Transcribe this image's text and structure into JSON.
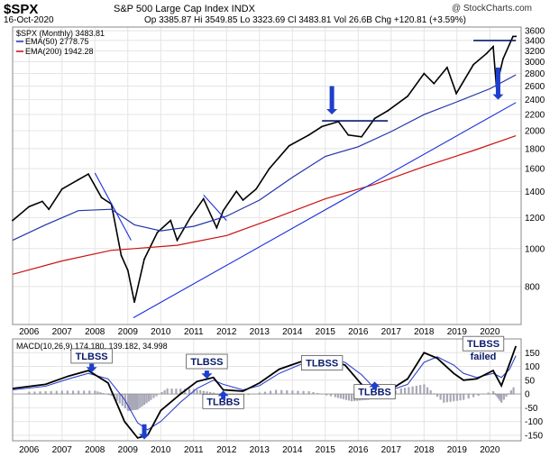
{
  "header": {
    "symbol": "$SPX",
    "name": "S&P 500 Large Cap Index INDX",
    "date": "16-Oct-2020",
    "ohlc": "Op 3385.87  Hi 3549.85  Lo 3323.69  Cl 3483.81  Vol 26.6B  Chg +120.81 (+3.59%)",
    "watermark": "@ StockCharts.com"
  },
  "colors": {
    "price": "#000000",
    "ema50": "#2233aa",
    "ema200": "#cc1111",
    "trendline": "#1a2fdd",
    "macd": "#000000",
    "signal": "#3344cc",
    "histogram": "#a8a8b8",
    "grid": "#e4e4e4",
    "annotation_box": "#ffffff",
    "annotation_text": "#0a1a6b",
    "arrow": "#1e3fcc"
  },
  "legend": {
    "price": "$SPX (Monthly) 3483.81",
    "ema50": "EMA(50) 2778.75",
    "ema200": "EMA(200) 1942.28"
  },
  "macd_legend": {
    "label": "MACD(10,26,9) 174.180, 139.182, 34.998"
  },
  "annotations": [
    {
      "text": "TLBSS",
      "panel": "macd",
      "year": 2007.9,
      "value": 125
    },
    {
      "text": "TLBSS",
      "panel": "macd",
      "year": 2011.4,
      "value": 105
    },
    {
      "text": "TLBBS",
      "panel": "macd",
      "year": 2011.9,
      "value": -40
    },
    {
      "text": "TLBSS",
      "panel": "price",
      "year": 2014.9,
      "value": 500
    },
    {
      "text": "TLBBS",
      "panel": "macd",
      "year": 2016.5,
      "value": -5
    },
    {
      "text": "TLBSS",
      "panel": "price",
      "year": 2019.8,
      "value": 560
    },
    {
      "text": "failed",
      "panel": "price",
      "year": 2019.8,
      "value": 520
    }
  ],
  "chart_data": [
    {
      "type": "line",
      "title": "$SPX S&P 500 Large Cap Index INDX",
      "scale": "log",
      "x_tick_labels": [
        "2006",
        "2007",
        "2008",
        "2009",
        "2010",
        "2011",
        "2012",
        "2013",
        "2014",
        "2015",
        "2016",
        "2017",
        "2018",
        "2019",
        "2020"
      ],
      "y_tick_labels": [
        "800",
        "1000",
        "1200",
        "1400",
        "1600",
        "1800",
        "2000",
        "2200",
        "2400",
        "2600",
        "2800",
        "3000",
        "3200",
        "3400",
        "3600"
      ],
      "ylim": [
        640,
        3680
      ],
      "series": [
        {
          "name": "$SPX (Monthly)",
          "x": [
            2005.5,
            2006.0,
            2006.4,
            2006.6,
            2007.0,
            2007.5,
            2007.8,
            2008.2,
            2008.5,
            2008.8,
            2009.0,
            2009.2,
            2009.5,
            2009.9,
            2010.3,
            2010.5,
            2010.9,
            2011.3,
            2011.7,
            2011.9,
            2012.3,
            2012.5,
            2012.9,
            2013.3,
            2013.9,
            2014.5,
            2014.9,
            2015.4,
            2015.7,
            2016.1,
            2016.5,
            2016.9,
            2017.5,
            2018.0,
            2018.3,
            2018.7,
            2018.98,
            2019.5,
            2019.9,
            2020.1,
            2020.2,
            2020.4,
            2020.7,
            2020.79
          ],
          "y": [
            1180,
            1280,
            1320,
            1260,
            1420,
            1500,
            1550,
            1350,
            1300,
            960,
            880,
            730,
            940,
            1100,
            1180,
            1050,
            1200,
            1340,
            1130,
            1250,
            1400,
            1330,
            1420,
            1600,
            1830,
            1950,
            2050,
            2110,
            1950,
            1930,
            2150,
            2250,
            2450,
            2800,
            2640,
            2900,
            2490,
            2950,
            3150,
            3280,
            2585,
            3050,
            3480,
            3484
          ]
        },
        {
          "name": "EMA(50)",
          "x": [
            2005.5,
            2006.5,
            2007.5,
            2008.5,
            2009.2,
            2010.0,
            2011.0,
            2012.0,
            2013.0,
            2014.0,
            2015.0,
            2016.0,
            2017.0,
            2018.0,
            2019.0,
            2020.0,
            2020.79
          ],
          "y": [
            1050,
            1150,
            1250,
            1260,
            1150,
            1110,
            1140,
            1210,
            1330,
            1520,
            1720,
            1820,
            1990,
            2200,
            2370,
            2560,
            2779
          ]
        },
        {
          "name": "EMA(200)",
          "x": [
            2005.5,
            2007.0,
            2008.5,
            2009.2,
            2010.5,
            2012.0,
            2013.5,
            2015.0,
            2016.5,
            2018.0,
            2019.5,
            2020.79
          ],
          "y": [
            860,
            930,
            990,
            1000,
            1020,
            1080,
            1200,
            1340,
            1460,
            1620,
            1780,
            1942
          ]
        }
      ],
      "trendlines": [
        {
          "kind": "trendline",
          "x": [
            2009.17,
            2020.79
          ],
          "y": [
            666,
            2360
          ]
        },
        {
          "kind": "trendline",
          "x": [
            2008.0,
            2009.1
          ],
          "y": [
            1560,
            1050
          ]
        },
        {
          "kind": "trendline",
          "x": [
            2011.3,
            2012.0
          ],
          "y": [
            1370,
            1180
          ]
        },
        {
          "kind": "resistance",
          "x": [
            2014.9,
            2016.9
          ],
          "y": [
            2120,
            2120
          ]
        },
        {
          "kind": "resistance",
          "x": [
            2019.5,
            2020.79
          ],
          "y": [
            3400,
            3400
          ]
        }
      ],
      "arrows": [
        {
          "x": 2015.2,
          "y_from": 2600,
          "y_to": 2200
        },
        {
          "x": 2020.25,
          "y_from": 2900,
          "y_to": 2400
        }
      ]
    },
    {
      "type": "line",
      "title": "MACD(10,26,9)",
      "x_tick_labels": [
        "2006",
        "2007",
        "2008",
        "2009",
        "2010",
        "2011",
        "2012",
        "2013",
        "2014",
        "2015",
        "2016",
        "2017",
        "2018",
        "2019",
        "2020"
      ],
      "y_tick_labels": [
        "-150",
        "-100",
        "-50",
        "0",
        "50",
        "100",
        "150"
      ],
      "ylim": [
        -170,
        200
      ],
      "series": [
        {
          "name": "MACD",
          "x": [
            2005.5,
            2006.5,
            2007.2,
            2007.8,
            2008.4,
            2008.9,
            2009.3,
            2009.6,
            2010.0,
            2010.6,
            2011.1,
            2011.6,
            2011.9,
            2012.5,
            2013.0,
            2013.6,
            2014.2,
            2014.7,
            2015.1,
            2015.6,
            2016.1,
            2016.5,
            2016.9,
            2017.5,
            2018.0,
            2018.4,
            2018.9,
            2019.2,
            2019.6,
            2020.1,
            2020.35,
            2020.6,
            2020.79
          ],
          "y": [
            20,
            35,
            65,
            85,
            40,
            -100,
            -160,
            -150,
            -60,
            0,
            45,
            60,
            15,
            10,
            40,
            90,
            115,
            135,
            125,
            105,
            35,
            0,
            10,
            55,
            150,
            130,
            75,
            50,
            55,
            85,
            30,
            110,
            174
          ]
        },
        {
          "name": "Signal",
          "x": [
            2005.5,
            2006.5,
            2007.2,
            2007.8,
            2008.4,
            2008.9,
            2009.3,
            2009.6,
            2010.0,
            2010.6,
            2011.1,
            2011.6,
            2011.9,
            2012.5,
            2013.0,
            2013.6,
            2014.2,
            2014.7,
            2015.1,
            2015.6,
            2016.1,
            2016.5,
            2016.9,
            2017.5,
            2018.0,
            2018.4,
            2018.9,
            2019.2,
            2019.6,
            2020.1,
            2020.35,
            2020.6,
            2020.79
          ],
          "y": [
            15,
            28,
            55,
            75,
            55,
            -20,
            -105,
            -130,
            -100,
            -30,
            20,
            50,
            35,
            15,
            30,
            75,
            105,
            125,
            128,
            115,
            70,
            20,
            10,
            35,
            115,
            135,
            105,
            75,
            60,
            75,
            60,
            90,
            139
          ]
        },
        {
          "name": "Histogram",
          "x": [
            2006,
            2007,
            2008,
            2008.5,
            2009,
            2009.3,
            2009.7,
            2010.2,
            2011,
            2011.6,
            2012,
            2012.5,
            2013.5,
            2014.5,
            2015.3,
            2015.8,
            2016.3,
            2017.3,
            2018,
            2018.6,
            2019.2,
            2020.1,
            2020.35,
            2020.79
          ],
          "y": [
            8,
            12,
            12,
            -5,
            -60,
            -55,
            -20,
            20,
            18,
            5,
            -20,
            -5,
            15,
            10,
            -10,
            -25,
            -20,
            20,
            35,
            -30,
            -20,
            10,
            -30,
            35
          ]
        }
      ]
    }
  ]
}
